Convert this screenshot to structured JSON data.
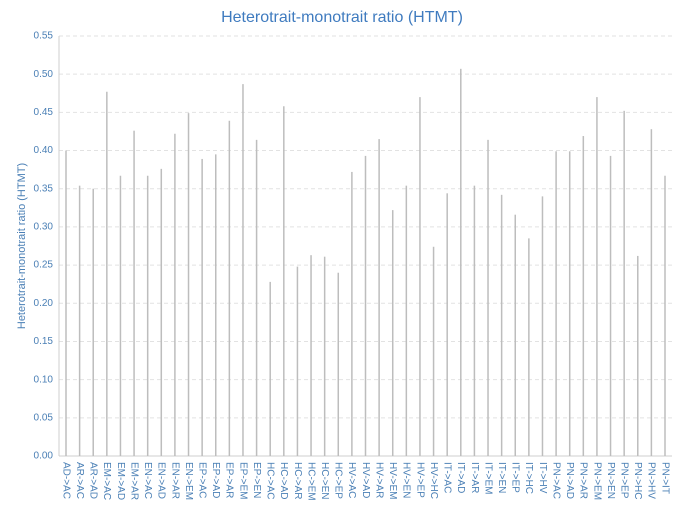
{
  "chart_data": {
    "type": "bar",
    "title": "Heterotrait-monotrait ratio (HTMT)",
    "y_label": "Heterotrait-monotrait ratio (HTMT)",
    "categories": [
      "AD->AC",
      "AR->AC",
      "AR->AD",
      "EM->AC",
      "EM->AD",
      "EM->AR",
      "EN->AC",
      "EN->AD",
      "EN->AR",
      "EN->EM",
      "EP->AC",
      "EP->AD",
      "EP->AR",
      "EP->EM",
      "EP->EN",
      "HC->AC",
      "HC->AD",
      "HC->AR",
      "HC->EM",
      "HC->EN",
      "HC->EP",
      "HV->AC",
      "HV->AD",
      "HV->AR",
      "HV->EM",
      "HV->EN",
      "HV->EP",
      "HV->HC",
      "IT->AC",
      "IT->AD",
      "IT->AR",
      "IT->EM",
      "IT->EN",
      "IT->EP",
      "IT->HC",
      "IT->HV",
      "PN->AC",
      "PN->AD",
      "PN->AR",
      "PN->EM",
      "PN->EN",
      "PN->EP",
      "PN->HC",
      "PN->HV",
      "PN->IT"
    ],
    "values": [
      0.4,
      0.354,
      0.35,
      0.477,
      0.367,
      0.426,
      0.367,
      0.376,
      0.422,
      0.449,
      0.389,
      0.395,
      0.439,
      0.487,
      0.414,
      0.228,
      0.458,
      0.248,
      0.263,
      0.261,
      0.24,
      0.372,
      0.393,
      0.415,
      0.322,
      0.354,
      0.47,
      0.274,
      0.344,
      0.507,
      0.354,
      0.414,
      0.342,
      0.316,
      0.285,
      0.34,
      0.399,
      0.399,
      0.419,
      0.47,
      0.393,
      0.452,
      0.262,
      0.428,
      0.367
    ],
    "color": "#bdbdbd",
    "ylim": [
      0,
      0.55
    ],
    "yticks": [
      {
        "value": 0,
        "label": "0.00"
      },
      0.05,
      {
        "value": 0.1,
        "label": "0.10"
      },
      0.15,
      {
        "value": 0.2,
        "label": "0.20"
      },
      0.25,
      {
        "value": 0.3,
        "label": "0.30"
      },
      0.35,
      {
        "value": 0.4,
        "label": "0.40"
      },
      0.45,
      {
        "value": 0.5,
        "label": "0.50"
      },
      0.55
    ],
    "grid": true
  }
}
